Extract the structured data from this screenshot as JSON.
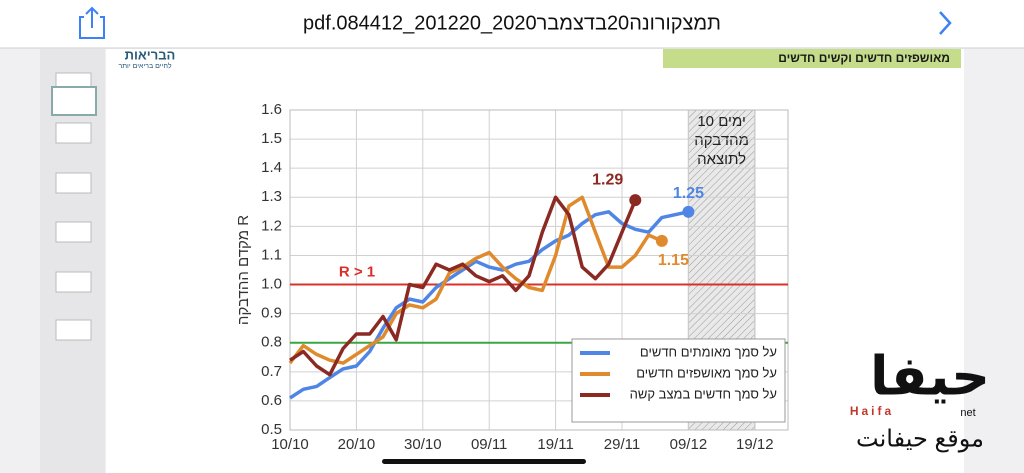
{
  "toolbar": {
    "title": "pdf.084412_201220_2020תמצקורונה20בדצמבר"
  },
  "logo": {
    "text": "הבריאות",
    "subtext": "לחיים בריאים יותר"
  },
  "header_banner": "מאושפזים חדשים וקשים חדשים",
  "watermark": {
    "logo": "حيفا",
    "brand": "Haifa",
    "suffix": "net",
    "site": "موقع حيفانت"
  },
  "chart_data": {
    "type": "line",
    "y_label": "מקדם ההדבקה R",
    "x": [
      "10/10",
      "12/10",
      "14/10",
      "16/10",
      "18/10",
      "20/10",
      "22/10",
      "24/10",
      "26/10",
      "28/10",
      "30/10",
      "01/11",
      "03/11",
      "05/11",
      "07/11",
      "09/11",
      "11/11",
      "13/11",
      "15/11",
      "17/11",
      "19/11",
      "21/11",
      "23/11",
      "25/11",
      "27/11",
      "29/11",
      "01/12",
      "03/12",
      "05/12",
      "07/12",
      "09/12"
    ],
    "series": [
      {
        "name": "על סמך מאומתים חדשים",
        "color": "#4f86e6",
        "values": [
          0.61,
          0.64,
          0.65,
          0.68,
          0.71,
          0.72,
          0.77,
          0.85,
          0.92,
          0.95,
          0.94,
          0.99,
          1.02,
          1.05,
          1.08,
          1.06,
          1.05,
          1.07,
          1.08,
          1.12,
          1.15,
          1.17,
          1.21,
          1.24,
          1.25,
          1.21,
          1.19,
          1.18,
          1.23,
          1.24,
          1.25
        ]
      },
      {
        "name": "על סמך מאושפזים חדשים",
        "color": "#e08a2e",
        "values": [
          0.73,
          0.79,
          0.76,
          0.74,
          0.73,
          0.76,
          0.79,
          0.82,
          0.9,
          0.93,
          0.92,
          0.95,
          1.04,
          1.06,
          1.09,
          1.11,
          1.06,
          1.02,
          0.99,
          0.98,
          1.1,
          1.27,
          1.3,
          1.18,
          1.06,
          1.06,
          1.1,
          1.17,
          1.15,
          null,
          null
        ]
      },
      {
        "name": "על סמך חדשים במצב קשה",
        "color": "#8b2a22",
        "values": [
          0.74,
          0.77,
          0.72,
          0.69,
          0.78,
          0.83,
          0.83,
          0.89,
          0.81,
          1.0,
          0.99,
          1.07,
          1.05,
          1.07,
          1.03,
          1.01,
          1.03,
          0.98,
          1.03,
          1.18,
          1.3,
          1.24,
          1.06,
          1.02,
          1.07,
          1.18,
          1.29,
          null,
          null,
          null,
          null
        ]
      }
    ],
    "ylim": [
      0.5,
      1.6
    ],
    "yticks": [
      0.5,
      0.6,
      0.7,
      0.8,
      0.9,
      {
        "value": 1.0,
        "label": "1.0"
      },
      1.1,
      1.2,
      1.3,
      1.4,
      1.5,
      1.6
    ],
    "xticks": [
      "10/10",
      "20/10",
      "30/10",
      "09/11",
      "19/11",
      "29/11",
      "09/12",
      "19/12"
    ],
    "grid": true,
    "legend": "lower right",
    "reference_lines": [
      {
        "value": 1.0,
        "color": "#d9302a"
      },
      {
        "value": 0.8,
        "color": "#3aa541"
      }
    ],
    "annotations": [
      {
        "text": "R > 1"
      }
    ],
    "shade": {
      "from": "09/12",
      "to": "19/12",
      "label": [
        "10 ימים",
        "מהדבקה",
        "לתוצאה"
      ]
    }
  }
}
